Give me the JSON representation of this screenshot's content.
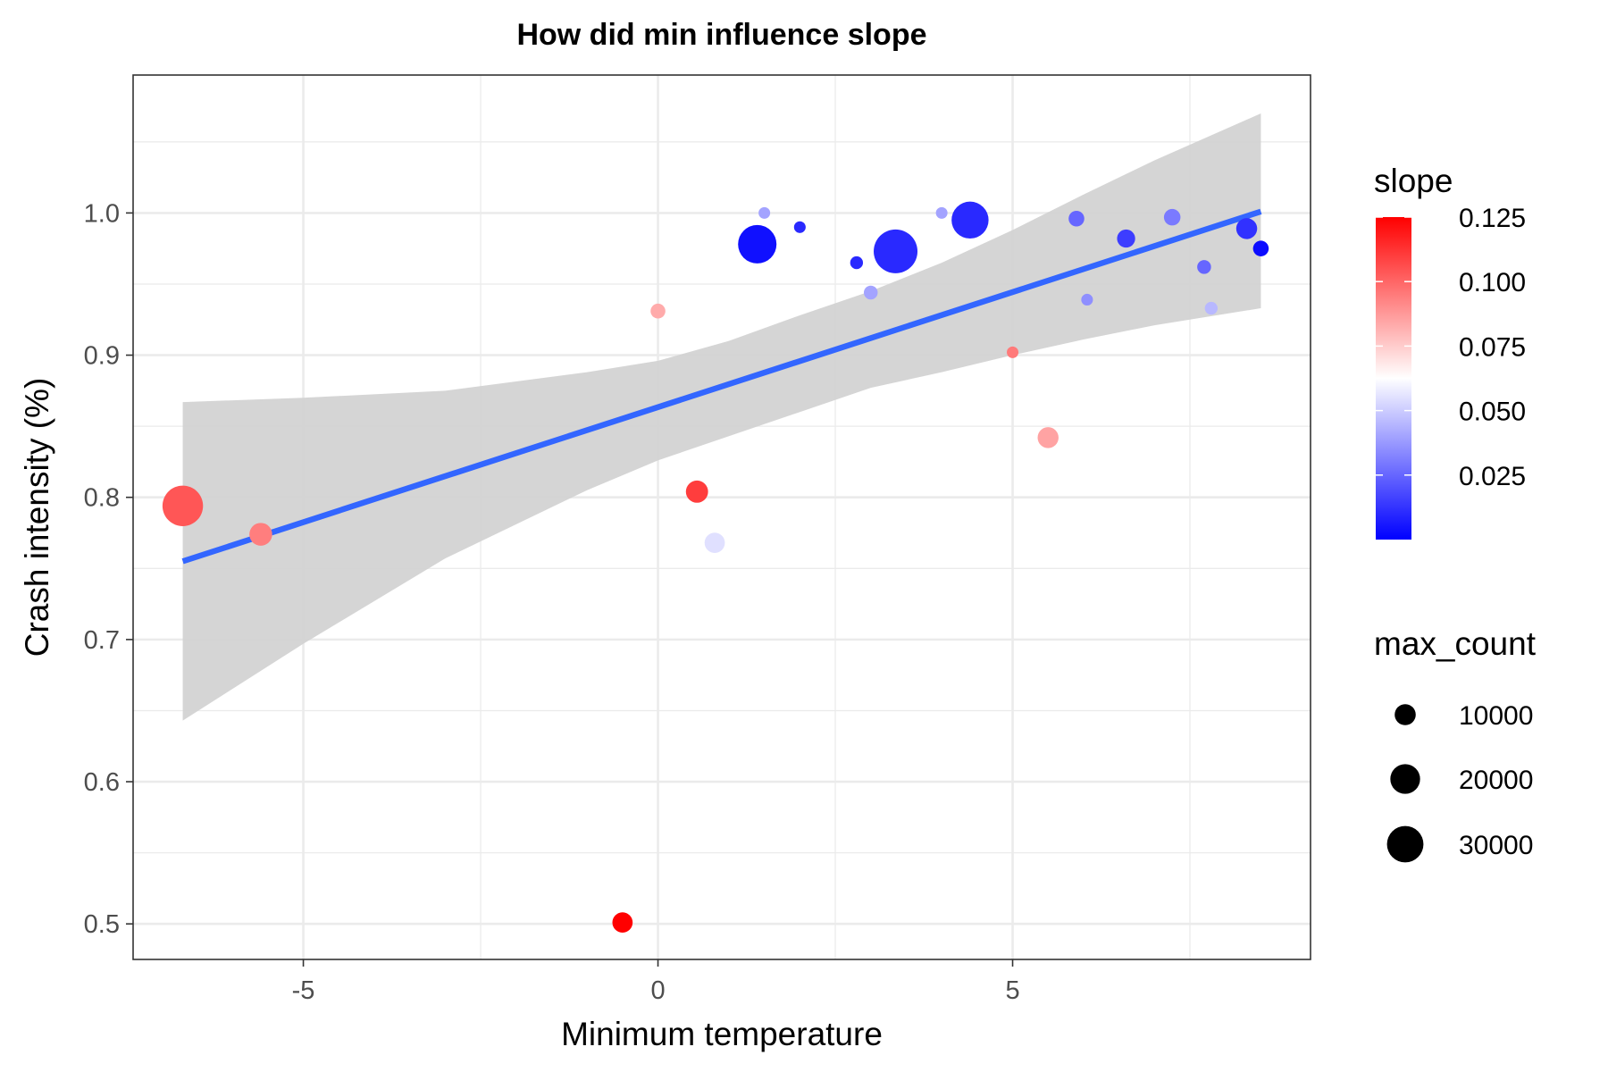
{
  "chart_data": {
    "type": "scatter",
    "title": "How did min influence slope",
    "xlabel": "Minimum temperature",
    "ylabel": "Crash intensity (%)",
    "xlim": [
      -7.4,
      9.2
    ],
    "ylim": [
      0.475,
      1.097
    ],
    "x_ticks": [
      -5,
      0,
      5
    ],
    "x_tick_labels": [
      "-5",
      "0",
      "5"
    ],
    "y_ticks": [
      0.5,
      0.6,
      0.7,
      0.8,
      0.9,
      1.0
    ],
    "y_tick_labels": [
      "0.5",
      "0.6",
      "0.7",
      "0.8",
      "0.9",
      "1.0"
    ],
    "grid": true,
    "points": [
      {
        "x": -6.7,
        "y": 0.794,
        "slope": 0.104,
        "max_count": 30000
      },
      {
        "x": -5.6,
        "y": 0.774,
        "slope": 0.094,
        "max_count": 9500
      },
      {
        "x": -0.5,
        "y": 0.501,
        "slope": 0.125,
        "max_count": 7500
      },
      {
        "x": 0.0,
        "y": 0.931,
        "slope": 0.083,
        "max_count": 4000
      },
      {
        "x": 0.55,
        "y": 0.804,
        "slope": 0.11,
        "max_count": 9000
      },
      {
        "x": 0.8,
        "y": 0.768,
        "slope": 0.055,
        "max_count": 7500
      },
      {
        "x": 1.4,
        "y": 0.978,
        "slope": 0.004,
        "max_count": 27000
      },
      {
        "x": 1.5,
        "y": 1.0,
        "slope": 0.04,
        "max_count": 800
      },
      {
        "x": 2.0,
        "y": 0.99,
        "slope": 0.01,
        "max_count": 2500
      },
      {
        "x": 2.8,
        "y": 0.965,
        "slope": 0.01,
        "max_count": 3000
      },
      {
        "x": 3.0,
        "y": 0.944,
        "slope": 0.04,
        "max_count": 3500
      },
      {
        "x": 3.35,
        "y": 0.973,
        "slope": 0.01,
        "max_count": 35000
      },
      {
        "x": 4.0,
        "y": 1.0,
        "slope": 0.04,
        "max_count": 1200
      },
      {
        "x": 4.4,
        "y": 0.995,
        "slope": 0.01,
        "max_count": 25000
      },
      {
        "x": 5.0,
        "y": 0.902,
        "slope": 0.095,
        "max_count": 2000
      },
      {
        "x": 5.5,
        "y": 0.842,
        "slope": 0.085,
        "max_count": 8000
      },
      {
        "x": 5.9,
        "y": 0.996,
        "slope": 0.025,
        "max_count": 4500
      },
      {
        "x": 6.05,
        "y": 0.939,
        "slope": 0.035,
        "max_count": 2500
      },
      {
        "x": 6.6,
        "y": 0.982,
        "slope": 0.015,
        "max_count": 6000
      },
      {
        "x": 7.25,
        "y": 0.997,
        "slope": 0.03,
        "max_count": 5000
      },
      {
        "x": 7.7,
        "y": 0.962,
        "slope": 0.025,
        "max_count": 3500
      },
      {
        "x": 7.8,
        "y": 0.933,
        "slope": 0.045,
        "max_count": 3000
      },
      {
        "x": 8.3,
        "y": 0.989,
        "slope": 0.012,
        "max_count": 8000
      },
      {
        "x": 8.5,
        "y": 0.975,
        "slope": 0.003,
        "max_count": 4500
      }
    ],
    "regression": {
      "x": [
        -6.7,
        8.5
      ],
      "y": [
        0.755,
        1.001
      ]
    },
    "confidence_band": {
      "x": [
        -6.7,
        -5.0,
        -3.0,
        -1.0,
        0.0,
        1.0,
        2.0,
        3.0,
        4.0,
        5.0,
        6.0,
        7.0,
        8.5
      ],
      "lower": [
        0.643,
        0.697,
        0.757,
        0.805,
        0.826,
        0.843,
        0.86,
        0.877,
        0.888,
        0.9,
        0.911,
        0.921,
        0.933
      ],
      "upper": [
        0.867,
        0.87,
        0.875,
        0.888,
        0.896,
        0.91,
        0.928,
        0.945,
        0.965,
        0.988,
        1.013,
        1.037,
        1.07
      ]
    },
    "legend": {
      "placement": "right",
      "color": {
        "title": "slope",
        "range": [
          0.0,
          0.125
        ],
        "breaks": [
          0.025,
          0.05,
          0.075,
          0.1,
          0.125
        ],
        "labels": [
          "0.025",
          "0.050",
          "0.075",
          "0.100",
          "0.125"
        ],
        "low_color": "#0000FF",
        "mid_color": "#FFFFFF",
        "high_color": "#FF0000",
        "midpoint": 0.0625
      },
      "size": {
        "title": "max_count",
        "breaks": [
          10000,
          20000,
          30000
        ],
        "labels": [
          "10000",
          "20000",
          "30000"
        ]
      }
    },
    "colors": {
      "line": "#3366FF",
      "band": "#D3D3D3",
      "grid": "#EBEBEB",
      "panel_border": "#333333",
      "axis_text": "#4D4D4D"
    }
  }
}
